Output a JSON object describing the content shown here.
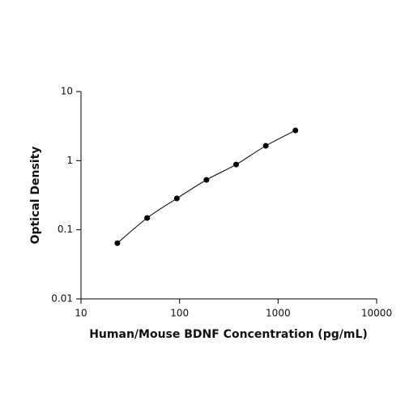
{
  "chart_data": {
    "type": "scatter",
    "x_label": "Human/Mouse BDNF Concentration (pg/mL)",
    "y_label": "Optical Density",
    "x": [
      23.4,
      46.9,
      93.8,
      187.5,
      375,
      750,
      1500
    ],
    "series": [
      {
        "color": "#000000",
        "values": [
          0.064,
          0.148,
          0.284,
          0.527,
          0.88,
          1.64,
          2.74
        ]
      }
    ],
    "xlim": [
      10,
      10000
    ],
    "xticks": [
      10,
      100,
      1000,
      10000
    ],
    "ylim": [
      0.01,
      10
    ],
    "yticks": [
      0.01,
      0.1,
      1,
      10
    ],
    "xscale": "log",
    "yscale": "log",
    "grid": false
  }
}
